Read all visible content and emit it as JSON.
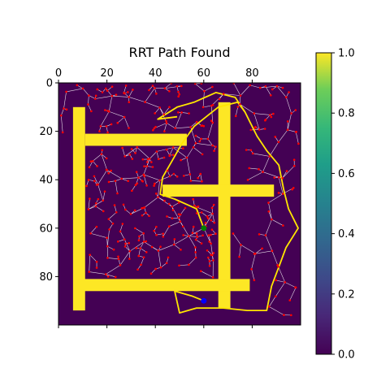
{
  "chart_data": [
    {
      "type": "heatmap",
      "title": "RRT Path Found",
      "xlabel": "",
      "ylabel": "",
      "x_tick_position": "top",
      "x_ticks": [
        0,
        20,
        40,
        60,
        80
      ],
      "y_ticks": [
        0,
        20,
        40,
        60,
        80
      ],
      "xlim": [
        0,
        100
      ],
      "ylim": [
        100,
        0
      ],
      "grid": false,
      "colormap": "viridis",
      "colors": {
        "free": "#440154",
        "obstacle": "#fde725",
        "tree_edge": "#ffffff",
        "tree_node": "#ff0000",
        "path": "#ffe600",
        "start": "#008000",
        "goal": "#0000ff"
      },
      "obstacles": [
        {
          "name": "left-vertical-wall",
          "x0": 6,
          "x1": 11,
          "y0": 10,
          "y1": 94
        },
        {
          "name": "upper-horizontal-bar",
          "x0": 11,
          "x1": 53,
          "y0": 21,
          "y1": 26
        },
        {
          "name": "center-vertical-wall",
          "x0": 66,
          "x1": 71,
          "y0": 8,
          "y1": 93
        },
        {
          "name": "middle-horizontal-bar",
          "x0": 43,
          "x1": 89,
          "y0": 42,
          "y1": 47
        },
        {
          "name": "bottom-horizontal-bar",
          "x0": 8,
          "x1": 79,
          "y0": 81,
          "y1": 86
        }
      ],
      "start": {
        "x": 60,
        "y": 60
      },
      "goal": {
        "x": 60,
        "y": 90
      },
      "path": [
        [
          60,
          60
        ],
        [
          57,
          52
        ],
        [
          48,
          48
        ],
        [
          42,
          46
        ],
        [
          43,
          39
        ],
        [
          47,
          32
        ],
        [
          51,
          25
        ],
        [
          56,
          18
        ],
        [
          61,
          14
        ],
        [
          66,
          10
        ],
        [
          74,
          8
        ],
        [
          77,
          12
        ],
        [
          79,
          16
        ],
        [
          82,
          22
        ],
        [
          86,
          28
        ],
        [
          91,
          34
        ],
        [
          93,
          44
        ],
        [
          95,
          52
        ],
        [
          99,
          60
        ],
        [
          94,
          68
        ],
        [
          91,
          76
        ],
        [
          88,
          84
        ],
        [
          86,
          94
        ],
        [
          78,
          94
        ],
        [
          68,
          93
        ],
        [
          57,
          93
        ],
        [
          50,
          95
        ],
        [
          48,
          86
        ],
        [
          55,
          88
        ],
        [
          60,
          90
        ]
      ],
      "path_side_branch": [
        [
          77,
          12
        ],
        [
          73,
          6
        ],
        [
          65,
          4
        ],
        [
          56,
          8
        ],
        [
          49,
          10
        ],
        [
          41,
          15
        ],
        [
          49,
          14
        ]
      ],
      "tree_node_count": 380,
      "tree_seed": 7,
      "colorbar": {
        "min": 0.0,
        "max": 1.0,
        "ticks": [
          "0.0",
          "0.2",
          "0.4",
          "0.6",
          "0.8",
          "1.0"
        ]
      }
    }
  ]
}
